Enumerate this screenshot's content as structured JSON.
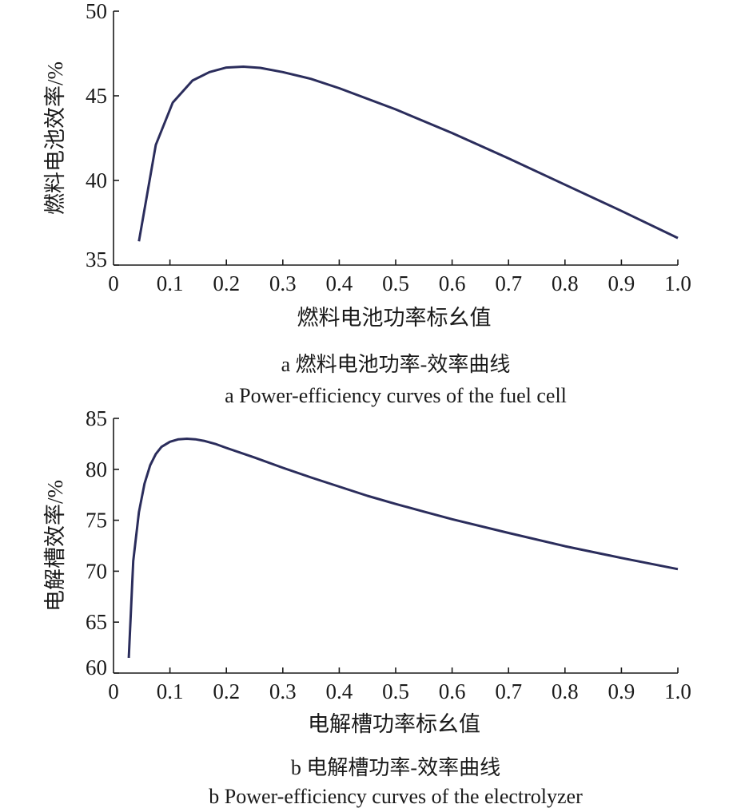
{
  "chart_data": [
    {
      "type": "line",
      "xlabel": "燃料电池功率标幺值",
      "ylabel": "燃料电池效率/%",
      "caption_cn": "a  燃料电池功率-效率曲线",
      "caption_en": "a  Power-efficiency curves of the fuel cell",
      "xlim": [
        0,
        1.0
      ],
      "ylim": [
        35,
        50
      ],
      "xticks": [
        "0",
        "0.1",
        "0.2",
        "0.3",
        "0.4",
        "0.5",
        "0.6",
        "0.7",
        "0.8",
        "0.9",
        "1.0"
      ],
      "yticks": [
        "35",
        "40",
        "45",
        "50"
      ],
      "series": [
        {
          "color": "#2b2d5c",
          "x": [
            0.045,
            0.075,
            0.105,
            0.14,
            0.17,
            0.2,
            0.23,
            0.26,
            0.3,
            0.35,
            0.4,
            0.5,
            0.6,
            0.7,
            0.8,
            0.9,
            1.0
          ],
          "y": [
            36.4,
            42.1,
            44.6,
            45.9,
            46.4,
            46.67,
            46.72,
            46.65,
            46.4,
            46.0,
            45.45,
            44.2,
            42.8,
            41.3,
            39.75,
            38.2,
            36.6
          ]
        }
      ]
    },
    {
      "type": "line",
      "xlabel": "电解槽功率标幺值",
      "ylabel": "电解槽效率/%",
      "caption_cn": "b  电解槽功率-效率曲线",
      "caption_en": "b  Power-efficiency curves of the electrolyzer",
      "xlim": [
        0,
        1.0
      ],
      "ylim": [
        60,
        85
      ],
      "xticks": [
        "0",
        "0.1",
        "0.2",
        "0.3",
        "0.4",
        "0.5",
        "0.6",
        "0.7",
        "0.8",
        "0.9",
        "1.0"
      ],
      "yticks": [
        "60",
        "65",
        "70",
        "75",
        "80",
        "85"
      ],
      "series": [
        {
          "color": "#2b2d5c",
          "x": [
            0.027,
            0.035,
            0.045,
            0.055,
            0.065,
            0.075,
            0.085,
            0.1,
            0.115,
            0.13,
            0.145,
            0.16,
            0.18,
            0.2,
            0.25,
            0.3,
            0.35,
            0.4,
            0.45,
            0.5,
            0.55,
            0.6,
            0.7,
            0.8,
            0.9,
            1.0
          ],
          "y": [
            61.5,
            71.0,
            75.8,
            78.6,
            80.4,
            81.5,
            82.2,
            82.7,
            82.95,
            83.0,
            82.95,
            82.8,
            82.5,
            82.1,
            81.15,
            80.15,
            79.2,
            78.3,
            77.4,
            76.6,
            75.85,
            75.1,
            73.75,
            72.45,
            71.3,
            70.2
          ]
        }
      ]
    }
  ]
}
